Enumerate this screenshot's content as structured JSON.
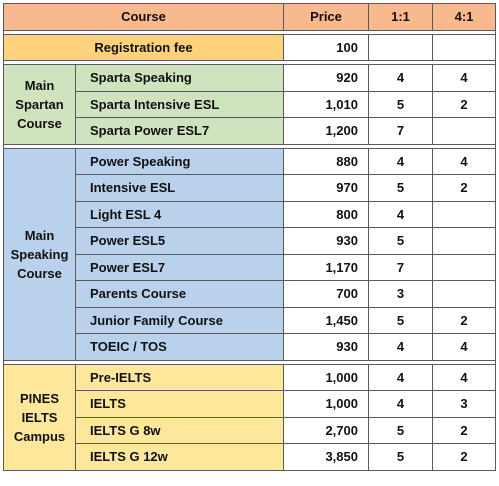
{
  "header": {
    "course": "Course",
    "price": "Price",
    "one_on_one": "1:1",
    "four_on_one": "4:1"
  },
  "registration": {
    "label": "Registration fee",
    "price": "100"
  },
  "groups": [
    {
      "name": "Main Spartan Course",
      "color": "#cfe3be",
      "rows": [
        {
          "course": "Sparta Speaking",
          "price": "920",
          "one": "4",
          "four": "4"
        },
        {
          "course": "Sparta Intensive ESL",
          "price": "1,010",
          "one": "5",
          "four": "2"
        },
        {
          "course": "Sparta Power ESL7",
          "price": "1,200",
          "one": "7",
          "four": ""
        }
      ]
    },
    {
      "name": "Main Speaking Course",
      "color": "#b9d1ea",
      "rows": [
        {
          "course": "Power Speaking",
          "price": "880",
          "one": "4",
          "four": "4"
        },
        {
          "course": "Intensive ESL",
          "price": "970",
          "one": "5",
          "four": "2"
        },
        {
          "course": "Light ESL 4",
          "price": "800",
          "one": "4",
          "four": ""
        },
        {
          "course": "Power ESL5",
          "price": "930",
          "one": "5",
          "four": ""
        },
        {
          "course": "Power ESL7",
          "price": "1,170",
          "one": "7",
          "four": ""
        },
        {
          "course": "Parents Course",
          "price": "700",
          "one": "3",
          "four": ""
        },
        {
          "course": "Junior Family Course",
          "price": "1,450",
          "one": "5",
          "four": "2"
        },
        {
          "course": "TOEIC / TOS",
          "price": "930",
          "one": "4",
          "four": "4"
        }
      ]
    },
    {
      "name": "PINES IELTS Campus",
      "color": "#fde79a",
      "rows": [
        {
          "course": "Pre-IELTS",
          "price": "1,000",
          "one": "4",
          "four": "4"
        },
        {
          "course": "IELTS",
          "price": "1,000",
          "one": "4",
          "four": "3"
        },
        {
          "course": "IELTS G 8w",
          "price": "2,700",
          "one": "5",
          "four": "2"
        },
        {
          "course": "IELTS G 12w",
          "price": "3,850",
          "one": "5",
          "four": "2"
        }
      ]
    }
  ]
}
